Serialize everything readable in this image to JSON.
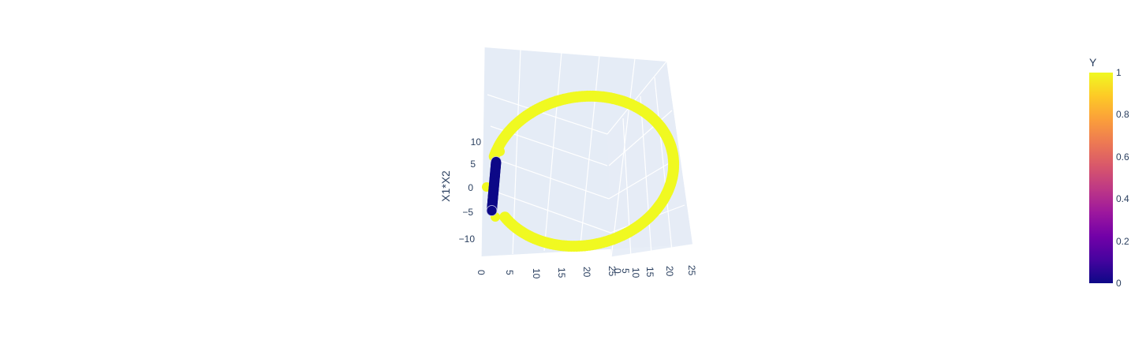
{
  "chart_data": {
    "type": "scatter3d",
    "colorbar": {
      "title": "Y",
      "range": [
        0,
        1
      ],
      "tick_labels": [
        "0",
        "0.2",
        "0.4",
        "0.6",
        "0.8",
        "1"
      ],
      "colorscale": [
        "#0d0887",
        "#46039f",
        "#7201a8",
        "#9c179e",
        "#bd3786",
        "#d8576b",
        "#ed7953",
        "#fb9f3a",
        "#fdca26",
        "#f0f921"
      ]
    },
    "axes": {
      "x": {
        "title": "",
        "range": [
          0,
          25
        ],
        "tick_labels": [
          "0",
          "5",
          "10",
          "15",
          "20",
          "25"
        ]
      },
      "y": {
        "title": "",
        "range": [
          0,
          25
        ],
        "tick_labels": [
          "0",
          "5",
          "10",
          "15",
          "20",
          "25"
        ]
      },
      "z": {
        "title": "X1*X2",
        "range": [
          -12.5,
          12.5
        ],
        "tick_labels": [
          "10",
          "5",
          "0",
          "−5",
          "−10"
        ]
      }
    },
    "series": [
      {
        "class": 1,
        "color": "#f0f921",
        "shape": "ring",
        "x1_center": 0,
        "x2_center": 0,
        "radius": 5,
        "approx_squared_range": [
          0,
          25
        ]
      },
      {
        "class": 0,
        "color": "#0d0887",
        "shape": "inner-disc",
        "radius": 1,
        "approx_product_range": [
          -5,
          5
        ]
      }
    ],
    "grid": true,
    "legend": "colorbar-right"
  }
}
